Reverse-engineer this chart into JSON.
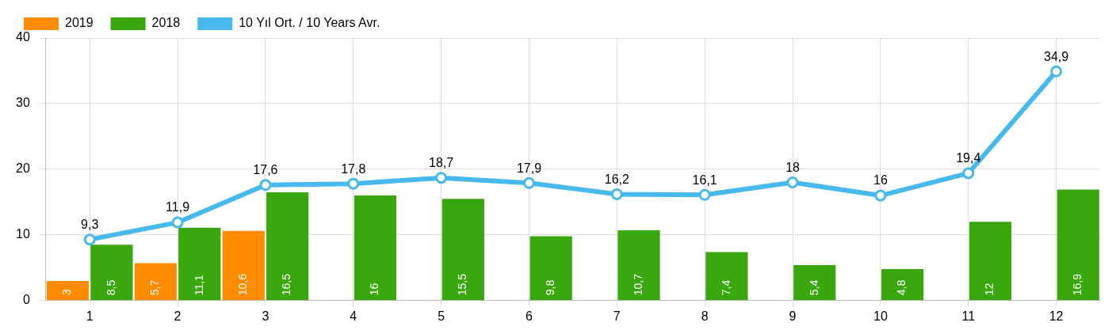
{
  "chart_data": {
    "type": "bar",
    "categories": [
      "1",
      "2",
      "3",
      "4",
      "5",
      "6",
      "7",
      "8",
      "9",
      "10",
      "11",
      "12"
    ],
    "series": [
      {
        "name": "2019",
        "color": "#ff8c00",
        "values": [
          3,
          5.7,
          10.6,
          null,
          null,
          null,
          null,
          null,
          null,
          null,
          null,
          null
        ],
        "value_labels": [
          "3",
          "5,7",
          "10,6",
          null,
          null,
          null,
          null,
          null,
          null,
          null,
          null,
          null
        ]
      },
      {
        "name": "2018",
        "color": "#3aa70f",
        "values": [
          8.5,
          11.1,
          16.5,
          16,
          15.5,
          9.8,
          10.7,
          7.4,
          5.4,
          4.8,
          12,
          16.9
        ],
        "value_labels": [
          "8,5",
          "11,1",
          "16,5",
          "16",
          "15,5",
          "9,8",
          "10,7",
          "7,4",
          "5,4",
          "4,8",
          "12",
          "16,9"
        ]
      },
      {
        "name": "10 Yıl Ort. / 10 Years Avr.",
        "type": "line",
        "color": "#47b9ec",
        "values": [
          9.3,
          11.9,
          17.6,
          17.8,
          18.7,
          17.9,
          16.2,
          16.1,
          18,
          16,
          19.4,
          34.9
        ],
        "value_labels": [
          "9,3",
          "11,9",
          "17,6",
          "17,8",
          "18,7",
          "17,9",
          "16,2",
          "16,1",
          "18",
          "16",
          "19,4",
          "34,9"
        ]
      }
    ],
    "ylim": [
      0,
      40
    ],
    "yticks": [
      0,
      10,
      20,
      30,
      40
    ],
    "grid": true,
    "legend": "top",
    "marker": "circle",
    "line_style": "solid"
  }
}
